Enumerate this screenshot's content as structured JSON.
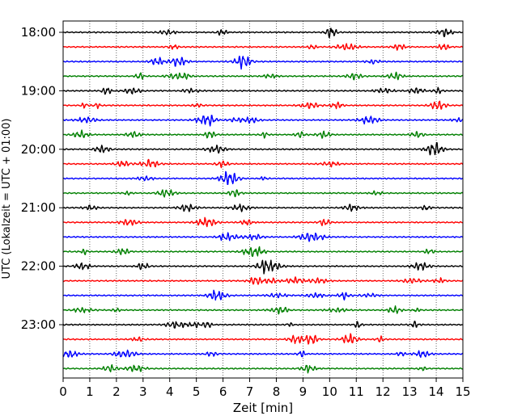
{
  "chart_data": {
    "type": "line",
    "title": "",
    "xlabel": "Zeit  [min]",
    "ylabel": "UTC (Lokalzeit = UTC + 01:00)",
    "xlim": [
      0,
      15
    ],
    "x_ticks": [
      "0",
      "1",
      "2",
      "3",
      "4",
      "5",
      "6",
      "7",
      "8",
      "9",
      "10",
      "11",
      "12",
      "13",
      "14",
      "15"
    ],
    "y_ticks": [
      "18:00",
      "19:00",
      "20:00",
      "21:00",
      "22:00",
      "23:00"
    ],
    "vertical_grid": "dotted, every 1 min",
    "trace_interval_min": 15,
    "trace_color_cycle": [
      "#000000",
      "#ff0000",
      "#0000ff",
      "#008000"
    ],
    "series": [
      {
        "start": "18:00",
        "color": "#000000"
      },
      {
        "start": "18:15",
        "color": "#ff0000"
      },
      {
        "start": "18:30",
        "color": "#0000ff"
      },
      {
        "start": "18:45",
        "color": "#008000"
      },
      {
        "start": "19:00",
        "color": "#000000"
      },
      {
        "start": "19:15",
        "color": "#ff0000"
      },
      {
        "start": "19:30",
        "color": "#0000ff"
      },
      {
        "start": "19:45",
        "color": "#008000"
      },
      {
        "start": "20:00",
        "color": "#000000"
      },
      {
        "start": "20:15",
        "color": "#ff0000"
      },
      {
        "start": "20:30",
        "color": "#0000ff"
      },
      {
        "start": "20:45",
        "color": "#008000"
      },
      {
        "start": "21:00",
        "color": "#000000"
      },
      {
        "start": "21:15",
        "color": "#ff0000"
      },
      {
        "start": "21:30",
        "color": "#0000ff"
      },
      {
        "start": "21:45",
        "color": "#008000"
      },
      {
        "start": "22:00",
        "color": "#000000"
      },
      {
        "start": "22:15",
        "color": "#ff0000"
      },
      {
        "start": "22:30",
        "color": "#0000ff"
      },
      {
        "start": "22:45",
        "color": "#008000"
      },
      {
        "start": "23:00",
        "color": "#000000"
      },
      {
        "start": "23:15",
        "color": "#ff0000"
      },
      {
        "start": "23:30",
        "color": "#0000ff"
      },
      {
        "start": "23:45",
        "color": "#008000"
      }
    ]
  }
}
